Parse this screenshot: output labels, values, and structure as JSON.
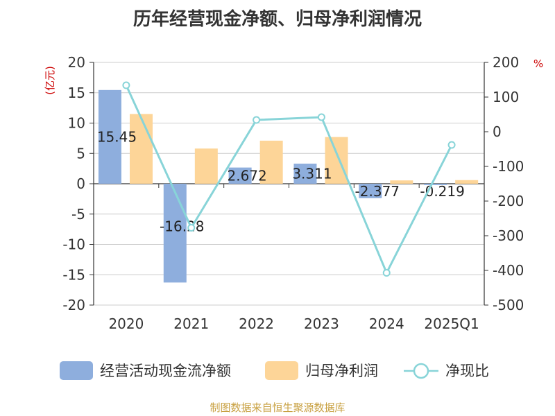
{
  "chart_data": {
    "type": "bar",
    "title": "历年经营现金净额、归母净利润情况",
    "categories": [
      "2020",
      "2021",
      "2022",
      "2023",
      "2024",
      "2025Q1"
    ],
    "y_left": {
      "unit": "(亿元)",
      "ylim": [
        -20,
        20
      ],
      "ticks": [
        20,
        15,
        10,
        5,
        0,
        -5,
        -10,
        -15,
        -20
      ]
    },
    "y_right": {
      "unit": "%",
      "ylim": [
        -500,
        200
      ],
      "ticks": [
        200,
        100,
        0,
        -100,
        -200,
        -300,
        -400,
        -500
      ]
    },
    "series": [
      {
        "name": "经营活动现金流净额",
        "type": "bar",
        "axis": "left",
        "color": "#8eaedd",
        "values": [
          15.45,
          -16.28,
          2.672,
          3.311,
          -2.377,
          -0.219
        ],
        "labels": [
          "15.45",
          "-16.28",
          "2.672",
          "3.311",
          "-2.377",
          "-0.219"
        ]
      },
      {
        "name": "归母净利润",
        "type": "bar",
        "axis": "left",
        "color": "#fdd598",
        "values": [
          11.5,
          5.8,
          7.1,
          7.7,
          0.55,
          0.6
        ]
      },
      {
        "name": "净现比",
        "type": "line",
        "axis": "right",
        "color": "#88d4d8",
        "values": [
          134,
          -277,
          34,
          42,
          -407,
          -38
        ]
      }
    ],
    "grid": true,
    "legend_position": "bottom"
  },
  "footer": {
    "source": "制图数据来自恒生聚源数据库"
  }
}
